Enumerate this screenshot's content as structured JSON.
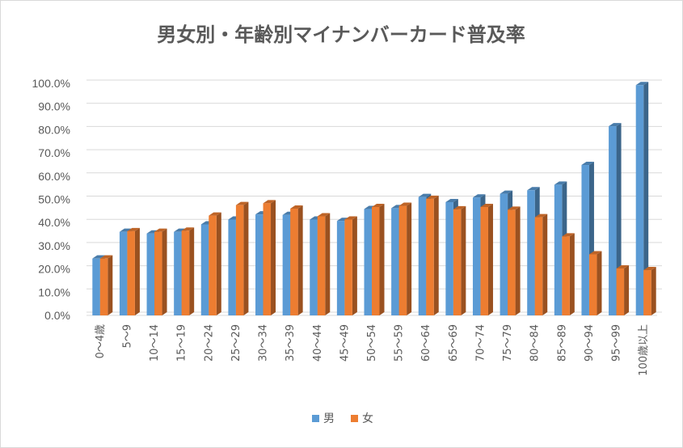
{
  "chart_data": {
    "type": "bar",
    "title": "男女別・年齢別マイナンバーカード普及率",
    "xlabel": "",
    "ylabel": "",
    "ylim": [
      0,
      100
    ],
    "yticks": [
      "0.0%",
      "10.0%",
      "20.0%",
      "30.0%",
      "40.0%",
      "50.0%",
      "60.0%",
      "70.0%",
      "80.0%",
      "90.0%",
      "100.0%"
    ],
    "categories": [
      "0～4歳",
      "5～9",
      "10～14",
      "15～19",
      "20～24",
      "25～29",
      "30～34",
      "35～39",
      "40～44",
      "45～49",
      "50～54",
      "55～59",
      "60～64",
      "65～69",
      "70～74",
      "75～79",
      "80～84",
      "85～89",
      "90～94",
      "95～99",
      "100歳以上"
    ],
    "series": [
      {
        "name": "男",
        "color": "#5b9bd5",
        "values": [
          24.5,
          36.0,
          35.3,
          36.0,
          39.2,
          41.3,
          43.5,
          43.3,
          41.3,
          40.7,
          45.8,
          46.2,
          51.0,
          48.8,
          50.8,
          52.4,
          53.9,
          56.3,
          64.8,
          81.5,
          99.2
        ]
      },
      {
        "name": "女",
        "color": "#ed7d31",
        "values": [
          24.5,
          36.3,
          36.0,
          36.5,
          43.0,
          47.5,
          48.3,
          46.0,
          42.7,
          41.3,
          46.7,
          47.2,
          50.2,
          45.7,
          46.7,
          45.5,
          42.3,
          34.0,
          26.3,
          20.2,
          19.5
        ]
      }
    ],
    "legend_position": "bottom",
    "grid": true
  }
}
